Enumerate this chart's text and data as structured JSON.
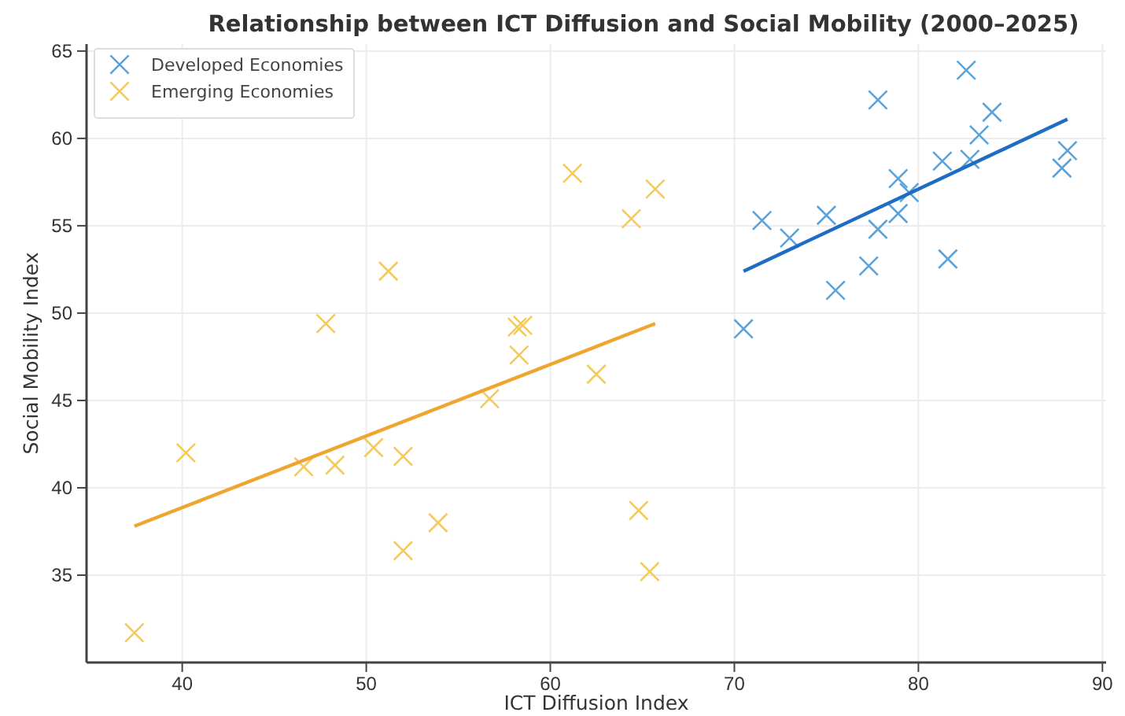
{
  "chart_data": {
    "type": "scatter",
    "title": "Relationship between ICT Diffusion and Social Mobility (2000–2025)",
    "xlabel": "ICT Diffusion Index",
    "ylabel": "Social Mobility Index",
    "xlim": [
      34.8,
      90.2
    ],
    "xticks": [
      40,
      50,
      60,
      70,
      80,
      90
    ],
    "ylim": [
      30,
      65.4
    ],
    "yticks": [
      35,
      40,
      45,
      50,
      55,
      60,
      65
    ],
    "grid": true,
    "legend": "top left",
    "marker": "cross",
    "series": [
      {
        "name": "Developed Economies",
        "color": "#5ba3d9",
        "x": [
          70.5,
          71.5,
          73.0,
          75.0,
          75.5,
          77.3,
          77.8,
          77.8,
          78.9,
          78.9,
          79.5,
          81.3,
          81.6,
          82.6,
          82.8,
          83.3,
          84.0,
          87.8,
          88.1
        ],
        "values": [
          49.1,
          55.3,
          54.3,
          55.6,
          51.3,
          52.7,
          62.2,
          54.8,
          57.7,
          55.7,
          56.9,
          58.7,
          53.1,
          63.9,
          58.8,
          60.2,
          61.5,
          58.3,
          59.3
        ]
      },
      {
        "name": "Emerging Economies",
        "color": "#f5ca5c",
        "x": [
          37.4,
          40.2,
          46.6,
          48.3,
          50.4,
          52.0,
          52.0,
          53.9,
          56.7,
          58.3,
          58.2,
          58.5,
          47.8,
          51.2,
          61.2,
          64.4,
          65.7,
          62.5,
          64.8,
          65.4
        ],
        "values": [
          31.7,
          42.0,
          41.2,
          41.3,
          42.3,
          41.8,
          36.4,
          38.0,
          45.1,
          47.6,
          49.2,
          49.3,
          49.4,
          52.4,
          58.0,
          55.4,
          57.1,
          46.5,
          38.7,
          35.2
        ]
      },
      {
        "type": "line",
        "color": "#1f6cc4",
        "marker": "none",
        "x": [
          70.5,
          88.1
        ],
        "values": [
          52.4,
          61.1
        ]
      },
      {
        "type": "line",
        "color": "#f0a52e",
        "marker": "none",
        "x": [
          37.4,
          65.7
        ],
        "values": [
          37.8,
          49.4
        ]
      }
    ]
  }
}
